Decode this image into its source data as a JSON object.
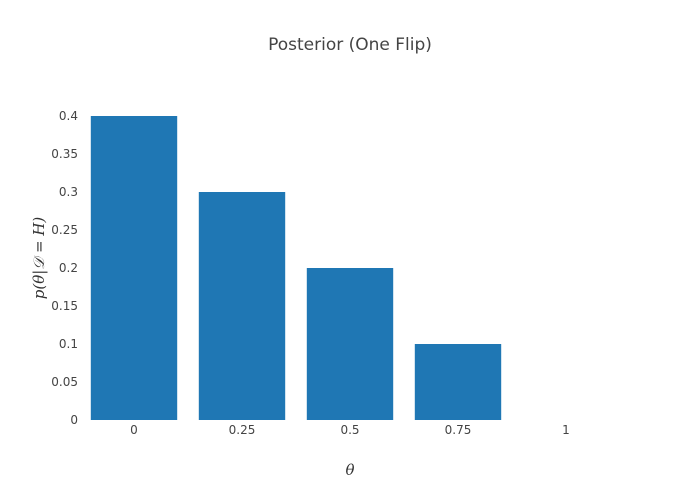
{
  "chart_data": {
    "type": "bar",
    "title": "Posterior (One Flip)",
    "xlabel": "θ",
    "ylabel": "p(θ|𝒟 = H)",
    "categories": [
      "0",
      "0.25",
      "0.5",
      "0.75",
      "1"
    ],
    "values": [
      0.4,
      0.3,
      0.2,
      0.1,
      0
    ],
    "ylim": [
      0,
      0.4
    ],
    "yticks": [
      "0",
      "0.05",
      "0.1",
      "0.15",
      "0.2",
      "0.25",
      "0.3",
      "0.35",
      "0.4"
    ],
    "grid": false,
    "legend": false,
    "colors": {
      "bar": "#1f77b4"
    }
  }
}
